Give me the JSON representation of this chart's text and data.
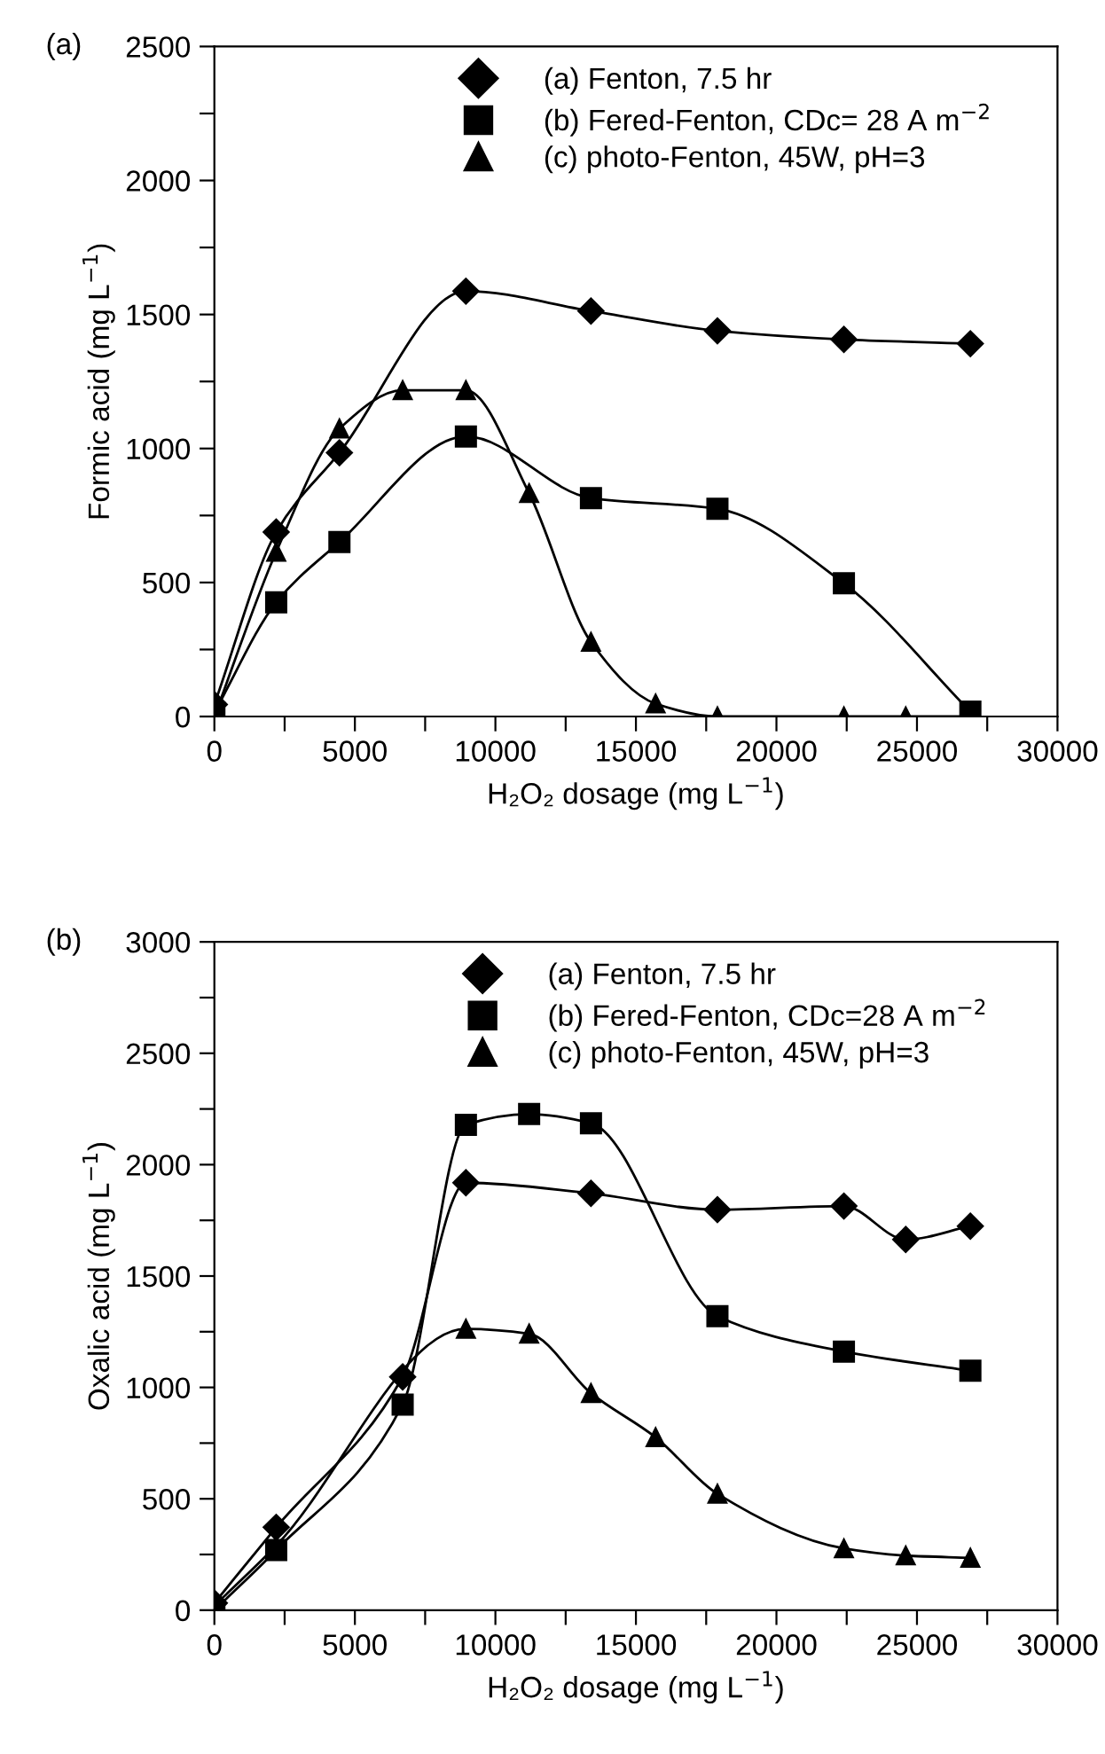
{
  "chart_data": [
    {
      "type": "line",
      "annotations": [
        "(a)"
      ],
      "xlabel": "H₂O₂ dosage (mg L$^{−1}$)",
      "ylabel": "Formic acid (mg L$^{−1}$)",
      "xlim": [
        0,
        30000
      ],
      "xticks": [
        0,
        {
          "value": 2500,
          "label": null
        },
        5000,
        {
          "value": 7500,
          "label": null
        },
        10000,
        {
          "value": 12500,
          "label": null
        },
        15000,
        {
          "value": 17500,
          "label": null
        },
        20000,
        {
          "value": 22500,
          "label": null
        },
        25000,
        {
          "value": 27500,
          "label": null
        },
        30000
      ],
      "ylim": [
        0,
        2500
      ],
      "yticks": [
        0,
        {
          "value": 250,
          "label": null
        },
        500,
        {
          "value": 750,
          "label": null
        },
        1000,
        {
          "value": 1250,
          "label": null
        },
        1500,
        {
          "value": 1750,
          "label": null
        },
        2000,
        {
          "value": 2250,
          "label": null
        },
        2500
      ],
      "legend": "top",
      "grid": false,
      "line_style": "solid",
      "series": [
        {
          "name": "(a) Fenton, 7.5 hr",
          "color": "#000000",
          "marker": "diamond",
          "x": [
            0,
            2200,
            4450,
            8950,
            13400,
            17900,
            22400,
            26900
          ],
          "values": [
            45,
            688,
            984,
            1587,
            1513,
            1439,
            1407,
            1391
          ]
        },
        {
          "name": "(b) Fered-Fenton, CDc= 28 A m$^{−2}$",
          "color": "#000000",
          "marker": "square",
          "x": [
            0,
            2200,
            4450,
            8950,
            13400,
            17900,
            22400,
            26900
          ],
          "values": [
            15,
            426,
            651,
            1045,
            815,
            775,
            497,
            18
          ]
        },
        {
          "name": "(c) photo-Fenton, 45W, pH=3",
          "color": "#000000",
          "marker": "triangle",
          "x": [
            0,
            2200,
            4450,
            6700,
            8950,
            11200,
            13400,
            15700,
            17900,
            22400,
            24600,
            26900
          ],
          "values": [
            0,
            614,
            1074,
            1217,
            1217,
            833,
            278,
            48,
            0,
            0,
            0,
            0
          ]
        }
      ]
    },
    {
      "type": "line",
      "annotations": [
        "(b)"
      ],
      "xlabel": "H₂O₂ dosage (mg L$^{−1}$)",
      "ylabel": "Oxalic acid (mg L$^{−1}$)",
      "xlim": [
        0,
        30000
      ],
      "xticks": [
        0,
        {
          "value": 2500,
          "label": null
        },
        5000,
        {
          "value": 7500,
          "label": null
        },
        10000,
        {
          "value": 12500,
          "label": null
        },
        15000,
        {
          "value": 17500,
          "label": null
        },
        20000,
        {
          "value": 22500,
          "label": null
        },
        25000,
        {
          "value": 27500,
          "label": null
        },
        30000
      ],
      "ylim": [
        0,
        3000
      ],
      "yticks": [
        0,
        {
          "value": 250,
          "label": null
        },
        500,
        {
          "value": 750,
          "label": null
        },
        1000,
        {
          "value": 1250,
          "label": null
        },
        1500,
        {
          "value": 1750,
          "label": null
        },
        2000,
        {
          "value": 2250,
          "label": null
        },
        2500,
        {
          "value": 2750,
          "label": null
        },
        3000
      ],
      "legend": "top",
      "grid": false,
      "line_style": "solid",
      "series": [
        {
          "name": "(a) Fenton, 7.5 hr",
          "color": "#000000",
          "marker": "diamond",
          "x": [
            0,
            2200,
            6700,
            8950,
            13400,
            17900,
            22400,
            24600,
            26900
          ],
          "values": [
            32,
            372,
            1047,
            1919,
            1871,
            1798,
            1814,
            1664,
            1724
          ]
        },
        {
          "name": "(b) Fered-Fenton, CDc=28 A m$^{−2}$",
          "color": "#000000",
          "marker": "square",
          "x": [
            0,
            2200,
            6700,
            8950,
            11200,
            13400,
            17900,
            22400,
            26900
          ],
          "values": [
            0,
            270,
            923,
            2179,
            2227,
            2186,
            1320,
            1161,
            1075
          ]
        },
        {
          "name": "(c) photo-Fenton, 45W, pH=3",
          "color": "#000000",
          "marker": "triangle",
          "x": [
            0,
            2200,
            6700,
            8950,
            11200,
            13400,
            15700,
            17900,
            22400,
            24600,
            26900
          ],
          "values": [
            20,
            290,
            null,
            1263,
            1241,
            974,
            776,
            522,
            277,
            245,
            235
          ]
        }
      ]
    }
  ]
}
